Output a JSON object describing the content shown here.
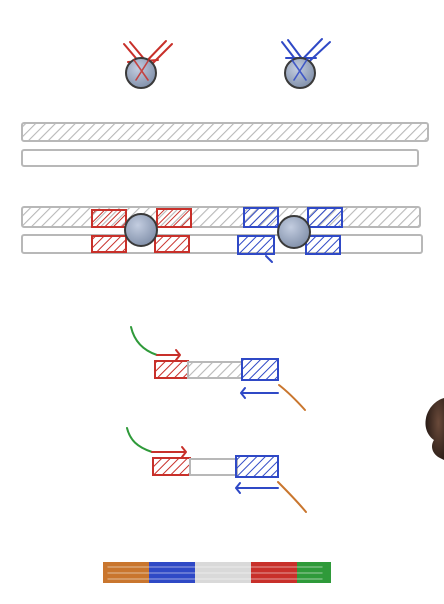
{
  "colors": {
    "background": "#ffffff",
    "gray": "#b8b8b8",
    "gray_fill": "#d9d9d9",
    "red": "#c8302a",
    "blue": "#2f49c6",
    "bead": "#9aa8c0",
    "bead_outline": "#3a3a3a",
    "green": "#2f9a3a",
    "orange": "#c9762e"
  },
  "diagram": {
    "panels": [
      "primer-probes",
      "genomic-duplex",
      "hybridized-duplex",
      "amplicon-1",
      "amplicon-2",
      "library-molecule"
    ],
    "library_molecule_segments": [
      "orange",
      "blue",
      "gray",
      "red",
      "green"
    ]
  },
  "icons": {
    "hand": "hand-icon"
  }
}
